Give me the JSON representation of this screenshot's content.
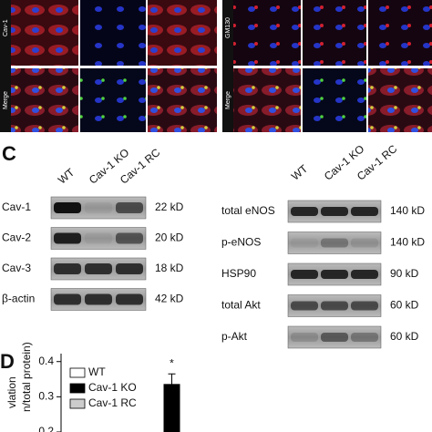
{
  "figure": {
    "panel_b": {
      "left_labels": [
        "Cav-1",
        "Merge"
      ],
      "right_labels": [
        "GM130",
        "Merge"
      ]
    },
    "panel_c": {
      "letter": "C",
      "lanes": [
        "WT",
        "Cav-1 KO",
        "Cav-1 RC"
      ],
      "left_rows": [
        {
          "label": "Cav-1",
          "size": "22 kD"
        },
        {
          "label": "Cav-2",
          "size": "20 kD"
        },
        {
          "label": "Cav-3",
          "size": "18 kD"
        },
        {
          "label": "β-actin",
          "size": "42 kD"
        }
      ],
      "right_rows": [
        {
          "label": "total eNOS",
          "size": "140 kD"
        },
        {
          "label": "p-eNOS",
          "size": "140 kD"
        },
        {
          "label": "HSP90",
          "size": "90 kD"
        },
        {
          "label": "total Akt",
          "size": "60 kD"
        },
        {
          "label": "p-Akt",
          "size": "60 kD"
        }
      ]
    },
    "panel_d": {
      "letter": "D",
      "ylabel": [
        "vlation",
        "n/total protein)"
      ]
    }
  },
  "chart_data": {
    "type": "bar",
    "ylim": [
      0.2,
      0.42
    ],
    "yticks": [
      0.4,
      0.3,
      0.2
    ],
    "series": [
      {
        "name": "WT",
        "color": "#ffffff",
        "values": [
          null
        ]
      },
      {
        "name": "Cav-1 KO",
        "color": "#000000",
        "values": [
          0.335
        ],
        "errors": [
          0.03
        ]
      },
      {
        "name": "Cav-1 RC",
        "color": "#cccccc",
        "values": [
          null
        ]
      }
    ],
    "annotation": "*"
  }
}
